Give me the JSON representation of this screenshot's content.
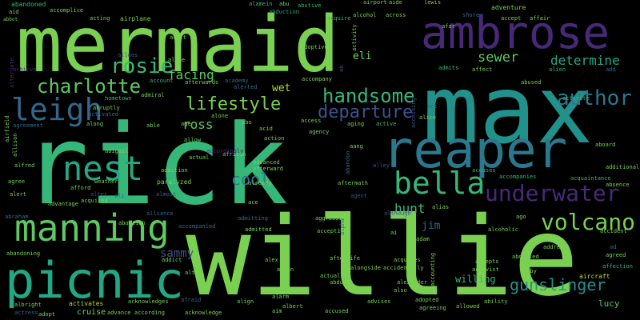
{
  "background_color": "#000000",
  "words": [
    {
      "text": "rick",
      "color": "#35b779"
    },
    {
      "text": "willie",
      "color": "#7ad151"
    },
    {
      "text": "max",
      "color": "#21918c"
    },
    {
      "text": "mermaid",
      "color": "#7ad151"
    },
    {
      "text": "reaper",
      "color": "#2a788e"
    },
    {
      "text": "ambrose",
      "color": "#482878"
    },
    {
      "text": "picnic",
      "color": "#22a884"
    },
    {
      "text": "manning",
      "color": "#5ec962"
    },
    {
      "text": "nest",
      "color": "#22a884"
    },
    {
      "text": "bella",
      "color": "#35b779"
    },
    {
      "text": "leigh",
      "color": "#31688e"
    },
    {
      "text": "underwater",
      "color": "#482878"
    },
    {
      "text": "volcano",
      "color": "#7ad151"
    },
    {
      "text": "charlotte",
      "color": "#5ec962"
    },
    {
      "text": "author",
      "color": "#2a788e"
    },
    {
      "text": "rosie",
      "color": "#35b779"
    },
    {
      "text": "handsome",
      "color": "#35b779"
    },
    {
      "text": "lifestyle",
      "color": "#7ad151"
    },
    {
      "text": "departure",
      "color": "#3b528b"
    },
    {
      "text": "gunslinger",
      "color": "#21918c"
    },
    {
      "text": "sewer",
      "color": "#5ec962"
    },
    {
      "text": "determine",
      "color": "#22a884"
    },
    {
      "text": "cool",
      "color": "#2a788e"
    },
    {
      "text": "ross",
      "color": "#5ec962"
    },
    {
      "text": "facing",
      "color": "#5ec962"
    },
    {
      "text": "hunt",
      "color": "#35b779"
    },
    {
      "text": "sammy",
      "color": "#3b528b"
    },
    {
      "text": "jim",
      "color": "#31688e"
    },
    {
      "text": "eli",
      "color": "#7ad151"
    },
    {
      "text": "wet",
      "color": "#b5de2b"
    },
    {
      "text": "willing",
      "color": "#35b779"
    },
    {
      "text": "lucy",
      "color": "#5ec962"
    },
    {
      "text": "abandoned",
      "color": "#35b779"
    },
    {
      "text": "accomplice",
      "color": "#7ad151"
    },
    {
      "text": "aid",
      "color": "#7ad151"
    },
    {
      "text": "abbot",
      "color": "#7ad151"
    },
    {
      "text": "acting",
      "color": "#7ad151"
    },
    {
      "text": "airplane",
      "color": "#7ad151"
    },
    {
      "text": "alamein",
      "color": "#35b779"
    },
    {
      "text": "abu",
      "color": "#7ad151"
    },
    {
      "text": "abduction",
      "color": "#22a884"
    },
    {
      "text": "airport",
      "color": "#7ad151"
    },
    {
      "text": "aide",
      "color": "#7ad151"
    },
    {
      "text": "abutive",
      "color": "#35b779"
    },
    {
      "text": "lewis",
      "color": "#7ad151"
    },
    {
      "text": "across",
      "color": "#7ad151"
    },
    {
      "text": "alcohol",
      "color": "#7ad151"
    },
    {
      "text": "acquire",
      "color": "#35b779"
    },
    {
      "text": "adventure",
      "color": "#7ad151"
    },
    {
      "text": "accept",
      "color": "#7ad151"
    },
    {
      "text": "shore",
      "color": "#31688e"
    },
    {
      "text": "affair",
      "color": "#7ad151"
    },
    {
      "text": "adult",
      "color": "#7ad151"
    },
    {
      "text": "alive",
      "color": "#7ad151"
    },
    {
      "text": "alloes",
      "color": "#3b528b"
    },
    {
      "text": "adoptive",
      "color": "#7ad151"
    },
    {
      "text": "alien",
      "color": "#35b779"
    },
    {
      "text": "affect",
      "color": "#7ad151"
    },
    {
      "text": "admits",
      "color": "#35b779"
    },
    {
      "text": "add",
      "color": "#31688e"
    },
    {
      "text": "achieve",
      "color": "#482878"
    },
    {
      "text": "account",
      "color": "#35b779"
    },
    {
      "text": "afterwards",
      "color": "#7ad151"
    },
    {
      "text": "academy",
      "color": "#31688e"
    },
    {
      "text": "alerted",
      "color": "#31688e"
    },
    {
      "text": "accompany",
      "color": "#7ad151"
    },
    {
      "text": "abused",
      "color": "#7ad151"
    },
    {
      "text": "activate",
      "color": "#35b779"
    },
    {
      "text": "admiral",
      "color": "#7ad151"
    },
    {
      "text": "hometown",
      "color": "#35b779"
    },
    {
      "text": "abruptly",
      "color": "#7ad151"
    },
    {
      "text": "activated",
      "color": "#31688e"
    },
    {
      "text": "alone",
      "color": "#7ad151"
    },
    {
      "text": "access",
      "color": "#7ad151"
    },
    {
      "text": "abo",
      "color": "#7ad151"
    },
    {
      "text": "acid",
      "color": "#7ad151"
    },
    {
      "text": "agency",
      "color": "#7ad151"
    },
    {
      "text": "aging",
      "color": "#7ad151"
    },
    {
      "text": "active",
      "color": "#35b779"
    },
    {
      "text": "alice",
      "color": "#7ad151"
    },
    {
      "text": "act",
      "color": "#31688e"
    },
    {
      "text": "agreement",
      "color": "#31688e"
    },
    {
      "text": "along",
      "color": "#7ad151"
    },
    {
      "text": "able",
      "color": "#7ad151"
    },
    {
      "text": "action",
      "color": "#7ad151"
    },
    {
      "text": "aang",
      "color": "#7ad151"
    },
    {
      "text": "aboard",
      "color": "#7ad151"
    },
    {
      "text": "abigail",
      "color": "#7ad151"
    },
    {
      "text": "allow",
      "color": "#7ad151"
    },
    {
      "text": "african",
      "color": "#7ad151"
    },
    {
      "text": "alley",
      "color": "#3b528b"
    },
    {
      "text": "additional",
      "color": "#7ad151"
    },
    {
      "text": "alfred",
      "color": "#7ad151"
    },
    {
      "text": "advanced",
      "color": "#7ad151"
    },
    {
      "text": "afterward",
      "color": "#7ad151"
    },
    {
      "text": "aftermath",
      "color": "#7ad151"
    },
    {
      "text": "accuses",
      "color": "#35b779"
    },
    {
      "text": "accompanies",
      "color": "#35b779"
    },
    {
      "text": "acquaintance",
      "color": "#35b779"
    },
    {
      "text": "agree",
      "color": "#7ad151"
    },
    {
      "text": "afford",
      "color": "#7ad151"
    },
    {
      "text": "weather",
      "color": "#7ad151"
    },
    {
      "text": "alert",
      "color": "#7ad151"
    },
    {
      "text": "advantage",
      "color": "#7ad151"
    },
    {
      "text": "alter",
      "color": "#3b528b"
    },
    {
      "text": "acquired",
      "color": "#7ad151"
    },
    {
      "text": "ali",
      "color": "#31688e"
    },
    {
      "text": "almost",
      "color": "#31688e"
    },
    {
      "text": "already",
      "color": "#7ad151"
    },
    {
      "text": "agent",
      "color": "#3b528b"
    },
    {
      "text": "alias",
      "color": "#7ad151"
    },
    {
      "text": "absence",
      "color": "#7ad151"
    },
    {
      "text": "abraham",
      "color": "#31688e"
    },
    {
      "text": "alliance",
      "color": "#31688e"
    },
    {
      "text": "accompanied",
      "color": "#31688e"
    },
    {
      "text": "admitting",
      "color": "#31688e"
    },
    {
      "text": "aggressive",
      "color": "#7ad151"
    },
    {
      "text": "although",
      "color": "#3b528b"
    },
    {
      "text": "ago",
      "color": "#7ad151"
    },
    {
      "text": "accident",
      "color": "#7ad151"
    },
    {
      "text": "abortion",
      "color": "#7ad151"
    },
    {
      "text": "admitted",
      "color": "#7ad151"
    },
    {
      "text": "accepting",
      "color": "#7ad151"
    },
    {
      "text": "ai",
      "color": "#7ad151"
    },
    {
      "text": "adam",
      "color": "#7ad151"
    },
    {
      "text": "alcoholic",
      "color": "#7ad151"
    },
    {
      "text": "address",
      "color": "#7ad151"
    },
    {
      "text": "abducted",
      "color": "#7ad151"
    },
    {
      "text": "agreed",
      "color": "#7ad151"
    },
    {
      "text": "abandoning",
      "color": "#7ad151"
    },
    {
      "text": "addict",
      "color": "#7ad151"
    },
    {
      "text": "alex",
      "color": "#7ad151"
    },
    {
      "text": "afterlife",
      "color": "#7ad151"
    },
    {
      "text": "acquires",
      "color": "#7ad151"
    },
    {
      "text": "accepts",
      "color": "#7ad151"
    },
    {
      "text": "affection",
      "color": "#35b779"
    },
    {
      "text": "altar",
      "color": "#7ad151"
    },
    {
      "text": "allen",
      "color": "#7ad151"
    },
    {
      "text": "alongside",
      "color": "#7ad151"
    },
    {
      "text": "accidentally",
      "color": "#7ad151"
    },
    {
      "text": "activist",
      "color": "#7ad151"
    },
    {
      "text": "abby",
      "color": "#7ad151"
    },
    {
      "text": "actually",
      "color": "#7ad151"
    },
    {
      "text": "abducts",
      "color": "#7ad151"
    },
    {
      "text": "aircraft",
      "color": "#b5de2b"
    },
    {
      "text": "actor",
      "color": "#7ad151"
    },
    {
      "text": "albright",
      "color": "#7ad151"
    },
    {
      "text": "activates",
      "color": "#b5de2b"
    },
    {
      "text": "acknowledges",
      "color": "#7ad151"
    },
    {
      "text": "afraid",
      "color": "#31688e"
    },
    {
      "text": "align",
      "color": "#7ad151"
    },
    {
      "text": "alarm",
      "color": "#7ad151"
    },
    {
      "text": "albert",
      "color": "#7ad151"
    },
    {
      "text": "advises",
      "color": "#7ad151"
    },
    {
      "text": "alexander",
      "color": "#7ad151"
    },
    {
      "text": "adopted",
      "color": "#7ad151"
    },
    {
      "text": "ability",
      "color": "#7ad151"
    },
    {
      "text": "also",
      "color": "#7ad151"
    },
    {
      "text": "actress",
      "color": "#31688e"
    },
    {
      "text": "adopt",
      "color": "#7ad151"
    },
    {
      "text": "cruise",
      "color": "#7ad151"
    },
    {
      "text": "advance",
      "color": "#7ad151"
    },
    {
      "text": "according",
      "color": "#7ad151"
    },
    {
      "text": "acknowledge",
      "color": "#7ad151"
    },
    {
      "text": "aim",
      "color": "#7ad151"
    },
    {
      "text": "accused",
      "color": "#7ad151"
    },
    {
      "text": "agreeing",
      "color": "#7ad151"
    },
    {
      "text": "allowed",
      "color": "#7ad151"
    },
    {
      "text": "alternate",
      "color": "#482878"
    },
    {
      "text": "airfield",
      "color": "#7ad151"
    },
    {
      "text": "allison",
      "color": "#7ad151"
    },
    {
      "text": "abandon",
      "color": "#31688e"
    },
    {
      "text": "alpha",
      "color": "#31688e"
    },
    {
      "text": "accessing",
      "color": "#3b528b"
    },
    {
      "text": "paralyzed",
      "color": "#7ad151"
    },
    {
      "text": "addition",
      "color": "#7ad151"
    },
    {
      "text": "actual",
      "color": "#7ad151"
    },
    {
      "text": "activity",
      "color": "#7ad151"
    },
    {
      "text": "accounting",
      "color": "#7ad151"
    },
    {
      "text": "ab",
      "color": "#3b528b"
    },
    {
      "text": "ad",
      "color": "#31688e"
    },
    {
      "text": "age",
      "color": "#7ad151"
    },
    {
      "text": "afar",
      "color": "#7ad151"
    },
    {
      "text": "accordingly",
      "color": "#482878"
    },
    {
      "text": "ace",
      "color": "#7ad151"
    }
  ]
}
